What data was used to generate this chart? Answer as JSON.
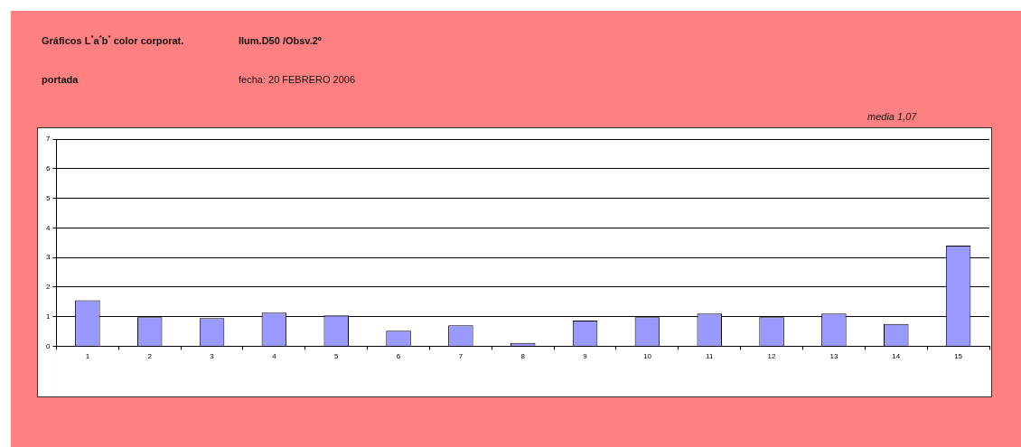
{
  "chart_data": {
    "type": "bar",
    "title": "Gráficos L$^{*}$a$^{*}$b$^{*}$ color corporat.",
    "subtitle": "Ilum.D50 /Obsv.2º",
    "annotations": [
      "portada",
      "fecha: 20 FEBRERO 2006",
      "media  1,07"
    ],
    "categories": [
      "1",
      "2",
      "3",
      "4",
      "5",
      "6",
      "7",
      "8",
      "9",
      "10",
      "11",
      "12",
      "13",
      "14",
      "15"
    ],
    "values": [
      1.55,
      0.98,
      0.95,
      1.13,
      1.04,
      0.52,
      0.71,
      0.11,
      0.87,
      0.98,
      1.1,
      0.98,
      1.1,
      0.75,
      3.4
    ],
    "color": "#9999ff",
    "ylim": [
      0,
      7
    ],
    "yticks": [
      0,
      1,
      2,
      3,
      4,
      5,
      6,
      7
    ],
    "grid": "y",
    "legend": false
  }
}
